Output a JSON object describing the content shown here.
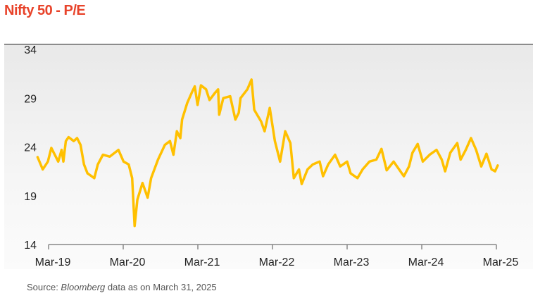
{
  "title": "Nifty 50 - P/E",
  "source": {
    "prefix": "Source: ",
    "name": "Bloomberg",
    "suffix": " data as on March 31, 2025"
  },
  "colors": {
    "title": "#e8432a",
    "line": "#ffc000"
  },
  "chart_data": {
    "type": "line",
    "title": "Nifty 50 - P/E",
    "xlabel": "",
    "ylabel": "",
    "ylim": [
      14,
      34
    ],
    "yticks": [
      "14",
      "19",
      "24",
      "29",
      "34"
    ],
    "xticks": [
      "Mar-19",
      "Mar-20",
      "Mar-21",
      "Mar-22",
      "Mar-23",
      "Mar-24",
      "Mar-25"
    ],
    "x_unit": "months since Mar-19",
    "series": [
      {
        "name": "Nifty 50 P/E",
        "points": [
          [
            -1.77,
            22.95
          ],
          [
            -0.94,
            21.7
          ],
          [
            -0.11,
            22.5
          ],
          [
            0.44,
            23.9
          ],
          [
            1.0,
            23.2
          ],
          [
            1.55,
            22.5
          ],
          [
            2.1,
            23.7
          ],
          [
            2.38,
            22.5
          ],
          [
            2.77,
            24.6
          ],
          [
            3.21,
            25.0
          ],
          [
            4.04,
            24.6
          ],
          [
            4.59,
            24.9
          ],
          [
            5.14,
            24.2
          ],
          [
            5.7,
            22.2
          ],
          [
            6.25,
            21.3
          ],
          [
            7.35,
            20.8
          ],
          [
            7.91,
            22.2
          ],
          [
            8.74,
            23.2
          ],
          [
            9.84,
            23.0
          ],
          [
            11.23,
            23.7
          ],
          [
            12.06,
            22.5
          ],
          [
            12.88,
            22.2
          ],
          [
            13.44,
            20.8
          ],
          [
            13.83,
            15.9
          ],
          [
            14.27,
            18.6
          ],
          [
            15.1,
            20.3
          ],
          [
            15.93,
            18.8
          ],
          [
            16.48,
            20.8
          ],
          [
            17.59,
            22.7
          ],
          [
            18.69,
            24.2
          ],
          [
            19.52,
            24.6
          ],
          [
            20.07,
            23.2
          ],
          [
            20.63,
            25.6
          ],
          [
            21.18,
            24.9
          ],
          [
            21.46,
            26.8
          ],
          [
            22.29,
            28.5
          ],
          [
            23.12,
            29.7
          ],
          [
            23.5,
            30.2
          ],
          [
            23.95,
            28.3
          ],
          [
            24.5,
            30.3
          ],
          [
            25.33,
            29.9
          ],
          [
            25.88,
            28.8
          ],
          [
            26.71,
            29.5
          ],
          [
            27.26,
            29.9
          ],
          [
            27.43,
            27.3
          ],
          [
            28.09,
            29.0
          ],
          [
            29.2,
            29.2
          ],
          [
            30.03,
            26.8
          ],
          [
            30.58,
            27.5
          ],
          [
            30.86,
            29.0
          ],
          [
            31.96,
            29.9
          ],
          [
            32.63,
            30.9
          ],
          [
            33.07,
            27.8
          ],
          [
            34.18,
            26.6
          ],
          [
            34.73,
            25.6
          ],
          [
            35.56,
            28.0
          ],
          [
            36.39,
            24.6
          ],
          [
            37.22,
            22.5
          ],
          [
            38.05,
            25.6
          ],
          [
            38.88,
            24.4
          ],
          [
            39.43,
            20.8
          ],
          [
            40.26,
            21.7
          ],
          [
            40.7,
            20.2
          ],
          [
            41.64,
            21.7
          ],
          [
            42.47,
            22.2
          ],
          [
            43.58,
            22.5
          ],
          [
            44.13,
            21.0
          ],
          [
            44.96,
            22.2
          ],
          [
            46.06,
            23.2
          ],
          [
            46.89,
            22.0
          ],
          [
            48.0,
            22.5
          ],
          [
            48.55,
            21.3
          ],
          [
            49.66,
            20.8
          ],
          [
            50.49,
            21.7
          ],
          [
            51.59,
            22.5
          ],
          [
            52.7,
            22.7
          ],
          [
            53.53,
            23.8
          ],
          [
            54.36,
            21.6
          ],
          [
            55.47,
            22.5
          ],
          [
            57.12,
            21.0
          ],
          [
            57.95,
            22.0
          ],
          [
            58.51,
            23.4
          ],
          [
            59.34,
            24.3
          ],
          [
            60.17,
            22.5
          ],
          [
            61.27,
            23.2
          ],
          [
            62.38,
            23.7
          ],
          [
            63.21,
            22.7
          ],
          [
            63.76,
            21.5
          ],
          [
            64.59,
            23.4
          ],
          [
            65.7,
            24.4
          ],
          [
            66.25,
            22.7
          ],
          [
            67.08,
            23.7
          ],
          [
            67.91,
            24.9
          ],
          [
            68.74,
            23.7
          ],
          [
            69.57,
            22.0
          ],
          [
            70.4,
            23.3
          ],
          [
            71.23,
            21.7
          ],
          [
            71.78,
            21.5
          ],
          [
            72.22,
            22.1
          ]
        ]
      }
    ],
    "grid": false,
    "legend": "none"
  }
}
